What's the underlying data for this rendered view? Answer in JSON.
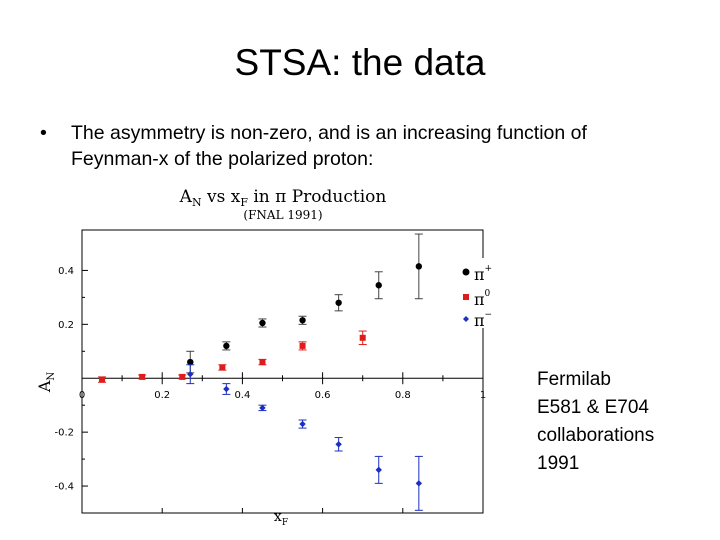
{
  "slide": {
    "title": "STSA: the data",
    "bullet": "The asymmetry is non-zero, and is an increasing function of Feynman-x of the polarized proton:",
    "note_lines": [
      "Fermilab",
      "E581 & E704",
      "collaborations",
      "1991"
    ]
  },
  "chart_data": {
    "type": "scatter",
    "title": "A_N vs x_F in π Production",
    "title_main": "A",
    "title_sub1": "N",
    "title_mid": " vs x",
    "title_sub2": "F",
    "title_end": " in π Production",
    "subtitle": "(FNAL 1991)",
    "xlabel": "x_F",
    "xlabel_main": "x",
    "xlabel_sub": "F",
    "ylabel": "A_N",
    "ylabel_main": "A",
    "ylabel_sub": "N",
    "xlim": [
      0,
      1
    ],
    "ylim": [
      -0.5,
      0.55
    ],
    "x_ticks": [
      0,
      0.2,
      0.4,
      0.6,
      0.8,
      1
    ],
    "x_tick_labels": [
      "0",
      "0.2",
      "0.4",
      "0.6",
      "0.8",
      "1"
    ],
    "y_ticks": [
      -0.4,
      -0.2,
      0.2,
      0.4
    ],
    "y_tick_labels": [
      "-0.4",
      "-0.2",
      "0.2",
      "0.4"
    ],
    "legend_position": "top-right",
    "series": [
      {
        "name": "π+",
        "legend_main": "π",
        "legend_sup": "+",
        "color": "#000000",
        "marker": "circle",
        "points": [
          {
            "x": 0.27,
            "y": 0.06,
            "err": 0.04
          },
          {
            "x": 0.36,
            "y": 0.12,
            "err": 0.015
          },
          {
            "x": 0.45,
            "y": 0.205,
            "err": 0.015
          },
          {
            "x": 0.55,
            "y": 0.215,
            "err": 0.015
          },
          {
            "x": 0.64,
            "y": 0.28,
            "err": 0.03
          },
          {
            "x": 0.74,
            "y": 0.345,
            "err": 0.05
          },
          {
            "x": 0.84,
            "y": 0.415,
            "err": 0.12
          }
        ]
      },
      {
        "name": "π0",
        "legend_main": "π",
        "legend_sup": "0",
        "color": "#dd1c1c",
        "marker": "square",
        "points": [
          {
            "x": 0.05,
            "y": -0.005,
            "err": 0.01
          },
          {
            "x": 0.15,
            "y": 0.005,
            "err": 0.007
          },
          {
            "x": 0.25,
            "y": 0.005,
            "err": 0.007
          },
          {
            "x": 0.35,
            "y": 0.04,
            "err": 0.01
          },
          {
            "x": 0.45,
            "y": 0.06,
            "err": 0.01
          },
          {
            "x": 0.55,
            "y": 0.12,
            "err": 0.015
          },
          {
            "x": 0.7,
            "y": 0.15,
            "err": 0.025
          }
        ]
      },
      {
        "name": "π−",
        "legend_main": "π",
        "legend_sup": "−",
        "color": "#1c2fc0",
        "marker": "diamond",
        "points": [
          {
            "x": 0.27,
            "y": 0.015,
            "err": 0.035
          },
          {
            "x": 0.36,
            "y": -0.04,
            "err": 0.02
          },
          {
            "x": 0.45,
            "y": -0.11,
            "err": 0.01
          },
          {
            "x": 0.55,
            "y": -0.17,
            "err": 0.015
          },
          {
            "x": 0.64,
            "y": -0.245,
            "err": 0.025
          },
          {
            "x": 0.74,
            "y": -0.34,
            "err": 0.05
          },
          {
            "x": 0.84,
            "y": -0.39,
            "err": 0.1
          }
        ]
      }
    ]
  }
}
